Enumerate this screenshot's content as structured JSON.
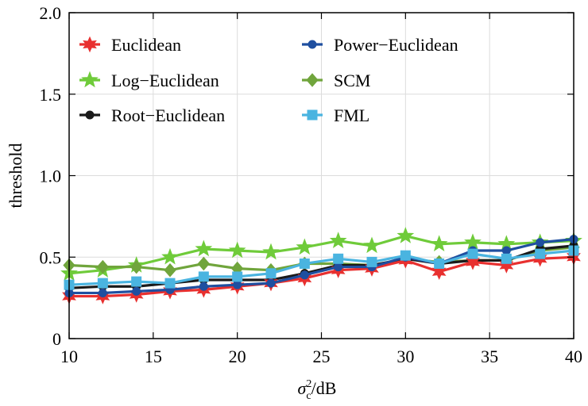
{
  "chart_data": {
    "type": "line",
    "title": "",
    "xlabel": "σ",
    "xlabel_subscript": "c",
    "xlabel_superscript": "2",
    "xlabel_suffix": "/dB",
    "ylabel": "threshold",
    "xlim": [
      10,
      40
    ],
    "ylim": [
      0,
      2.0
    ],
    "x_ticks": [
      10,
      15,
      20,
      25,
      30,
      35,
      40
    ],
    "x_tick_labels": [
      "10",
      "15",
      "20",
      "25",
      "30",
      "35",
      "40"
    ],
    "y_ticks": [
      0,
      0.5,
      1.0,
      1.5,
      2.0
    ],
    "y_tick_labels": [
      "0",
      "0.5",
      "1.0",
      "1.5",
      "2.0"
    ],
    "grid": true,
    "legend_position": "top-left",
    "x": [
      10,
      12,
      14,
      16,
      18,
      20,
      22,
      24,
      26,
      28,
      30,
      32,
      34,
      36,
      38,
      40
    ],
    "series": [
      {
        "name": "Euclidean",
        "color": "#e8302f",
        "marker": "star6",
        "values": [
          0.26,
          0.26,
          0.27,
          0.29,
          0.3,
          0.32,
          0.34,
          0.37,
          0.42,
          0.43,
          0.48,
          0.41,
          0.47,
          0.45,
          0.49,
          0.5
        ]
      },
      {
        "name": "Power−Euclidean",
        "color": "#1f4fa0",
        "marker": "circle",
        "values": [
          0.28,
          0.28,
          0.29,
          0.3,
          0.32,
          0.33,
          0.34,
          0.39,
          0.44,
          0.44,
          0.5,
          0.46,
          0.54,
          0.54,
          0.59,
          0.61
        ]
      },
      {
        "name": "Log−Euclidean",
        "color": "#6fcb3a",
        "marker": "star5",
        "values": [
          0.4,
          0.42,
          0.45,
          0.5,
          0.55,
          0.54,
          0.53,
          0.56,
          0.6,
          0.57,
          0.63,
          0.58,
          0.59,
          0.58,
          0.59,
          0.6
        ]
      },
      {
        "name": "SCM",
        "color": "#70a53c",
        "marker": "diamond",
        "values": [
          0.45,
          0.44,
          0.44,
          0.42,
          0.46,
          0.43,
          0.42,
          0.46,
          0.46,
          0.45,
          0.49,
          0.47,
          0.48,
          0.48,
          0.54,
          0.56
        ]
      },
      {
        "name": "Root−Euclidean",
        "color": "#1a1a1a",
        "marker": "circle",
        "values": [
          0.31,
          0.32,
          0.32,
          0.34,
          0.36,
          0.36,
          0.36,
          0.4,
          0.45,
          0.45,
          0.49,
          0.46,
          0.48,
          0.48,
          0.55,
          0.57
        ]
      },
      {
        "name": "FML",
        "color": "#4ab4e0",
        "marker": "square",
        "values": [
          0.33,
          0.34,
          0.35,
          0.34,
          0.38,
          0.38,
          0.4,
          0.46,
          0.49,
          0.47,
          0.51,
          0.46,
          0.52,
          0.49,
          0.52,
          0.54
        ]
      }
    ],
    "legend_order": [
      0,
      1,
      2,
      3,
      4,
      5
    ]
  }
}
